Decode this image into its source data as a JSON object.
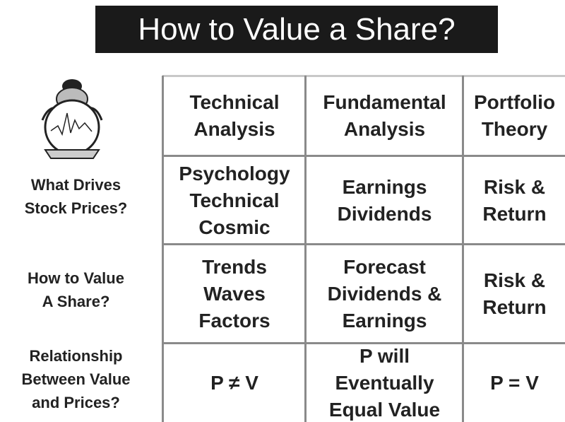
{
  "header": {
    "title": "How to Value a Share?"
  },
  "table": {
    "columns": [
      [
        "Technical",
        "Analysis"
      ],
      [
        "Fundamental",
        "Analysis"
      ],
      [
        "Portfolio",
        "Theory"
      ]
    ],
    "rows": [
      {
        "label": [
          "What Drives",
          "Stock Prices?"
        ],
        "cells": [
          [
            "Psychology",
            "Technical",
            "Cosmic"
          ],
          [
            "Earnings",
            "Dividends"
          ],
          [
            "Risk &",
            "Return"
          ]
        ]
      },
      {
        "label": [
          "How to Value",
          "A Share?"
        ],
        "cells": [
          [
            "Trends",
            "Waves",
            "Factors"
          ],
          [
            "Forecast",
            "Dividends &",
            "Earnings"
          ],
          [
            "Risk &",
            "Return"
          ]
        ]
      },
      {
        "label": [
          "Relationship",
          "Between Value",
          "and Prices?"
        ],
        "cells": [
          [
            "P ≠ V"
          ],
          [
            "P will",
            "Eventually",
            "Equal Value"
          ],
          [
            "P = V"
          ]
        ]
      }
    ]
  }
}
